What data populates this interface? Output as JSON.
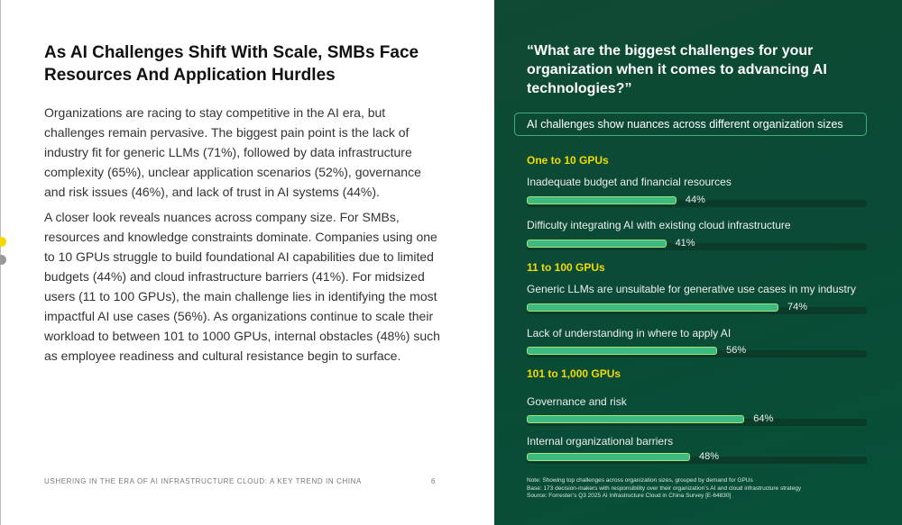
{
  "left": {
    "title": "As AI Challenges Shift With Scale, SMBs Face Resources And Application Hurdles",
    "paragraphs": [
      "Organizations are racing to stay competitive in the AI era, but challenges remain pervasive. The biggest pain point is the lack of industry fit for generic LLMs (71%), followed by data infrastructure complexity (65%), unclear application scenarios (52%), governance and risk issues (46%), and lack of trust in AI systems (44%).",
      "A closer look reveals nuances across company size. For SMBs, resources and knowledge constraints dominate. Companies using one to 10 GPUs struggle to build foundational AI capabilities due to limited budgets (44%) and cloud infrastructure barriers (41%). For midsized users (11 to 100 GPUs), the main challenge lies in identifying the most impactful AI use cases (56%). As organizations continue to scale their workload to between 101 to 1000 GPUs, internal obstacles (48%) such as employee readiness and cultural resistance begin to surface."
    ],
    "footer": "USHERING IN THE ERA OF AI INFRASTRUCTURE CLOUD: A KEY TREND IN CHINA",
    "page": "6"
  },
  "right": {
    "question": "“What are the biggest challenges for your organization when it comes to advancing AI technologies?”",
    "pill": "AI challenges show nuances across different organization sizes",
    "groups": [
      {
        "name": "One to 10 GPUs",
        "items": [
          {
            "label": "Inadequate budget and financial resources",
            "value": 44,
            "pct": "44%"
          },
          {
            "label": "Difficulty integrating AI with existing cloud infrastructure",
            "value": 41,
            "pct": "41%"
          }
        ]
      },
      {
        "name": "11 to 100 GPUs",
        "items": [
          {
            "label": "Generic LLMs are unsuitable for generative use cases in my industry",
            "value": 74,
            "pct": "74%"
          },
          {
            "label": "Lack of understanding in where to apply AI",
            "value": 56,
            "pct": "56%"
          }
        ]
      },
      {
        "name": "101 to 1,000 GPUs",
        "items": [
          {
            "label": "Governance and risk",
            "value": 64,
            "pct": "64%"
          },
          {
            "label": "Internal organizational barriers",
            "value": 48,
            "pct": "48%"
          }
        ]
      }
    ],
    "notes": [
      "Note: Showing top challenges across organization sizes, grouped by demand for GPUs",
      "Base: 173 decision-makers with responsibility over their organization’s AI and cloud infrastructure strategy",
      "Source: Forrester’s Q3 2025 AI Infrastructure Cloud in China Survey [E-64830]"
    ],
    "colors": {
      "bar": "#3cba80",
      "group": "#f2dc00"
    }
  }
}
